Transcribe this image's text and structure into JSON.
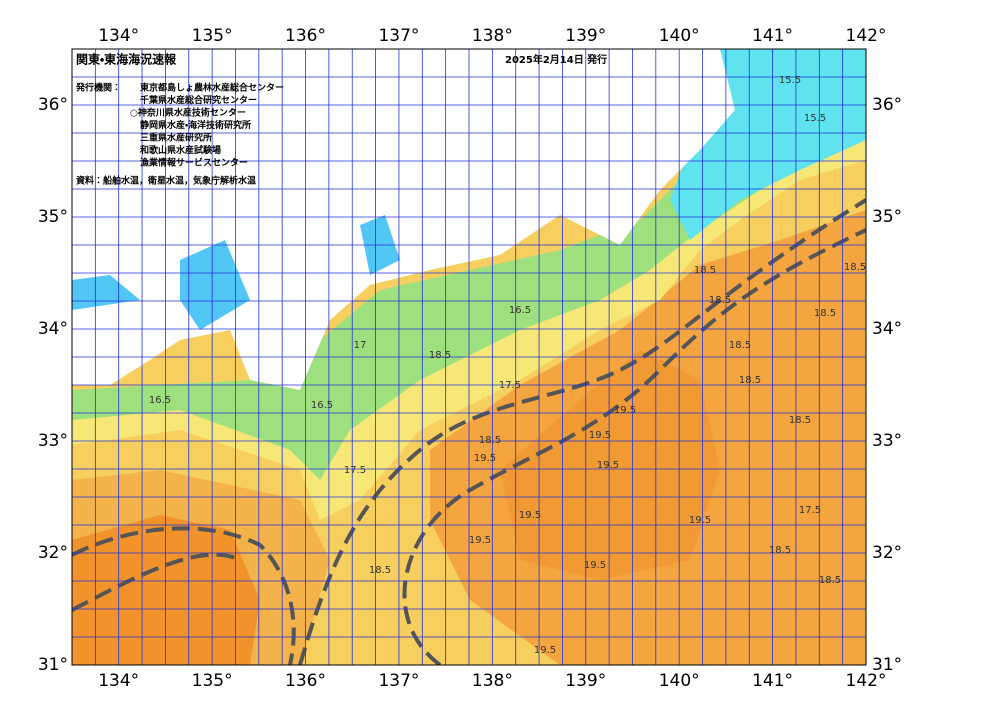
{
  "header": {
    "title": "関東・東海海況速報",
    "date": "2025年2月14日 発行",
    "agencies_label": "発行機関：",
    "agencies": [
      "東京都島しょ農林水産総合センター",
      "千葉県水産総合研究センター",
      "○神奈川県水産技術センター",
      "静岡県水産・海洋技術研究所",
      "三重県水産研究所",
      "和歌山県水産試験場",
      "漁業情報サービスセンター"
    ],
    "source": "資料：船舶水温，衛星水温，気象庁解析水温"
  },
  "map": {
    "lon_range": [
      133.5,
      142
    ],
    "lat_range": [
      31,
      36.5
    ],
    "grid_step": 0.25,
    "lon_ticks": [
      {
        "value": 134,
        "label": "134°"
      },
      {
        "value": 135,
        "label": "135°"
      },
      {
        "value": 136,
        "label": "136°"
      },
      {
        "value": 137,
        "label": "137°"
      },
      {
        "value": 138,
        "label": "138°"
      },
      {
        "value": 139,
        "label": "139°"
      },
      {
        "value": 140,
        "label": "140°"
      },
      {
        "value": 141,
        "label": "141°"
      },
      {
        "value": 142,
        "label": "142°"
      }
    ],
    "lat_ticks": [
      {
        "value": 31,
        "label": "31°"
      },
      {
        "value": 32,
        "label": "32°"
      },
      {
        "value": 33,
        "label": "33°"
      },
      {
        "value": 34,
        "label": "34°"
      },
      {
        "value": 35,
        "label": "35°"
      },
      {
        "value": 36,
        "label": "36°"
      }
    ],
    "contour_labels": [
      "16.5",
      "17.5",
      "18.5",
      "16.5",
      "17.5",
      "18.5",
      "19.5",
      "19.5",
      "19.5",
      "19.5",
      "19.5",
      "19.5",
      "18.5",
      "19.5",
      "18.5",
      "18.5",
      "18.5",
      "18.5",
      "17.5",
      "15.5",
      "15.5",
      "16.5",
      "17",
      "18.5",
      "19.5",
      "18.5",
      "18.5",
      "19.5",
      "18.5",
      "18.5"
    ]
  }
}
